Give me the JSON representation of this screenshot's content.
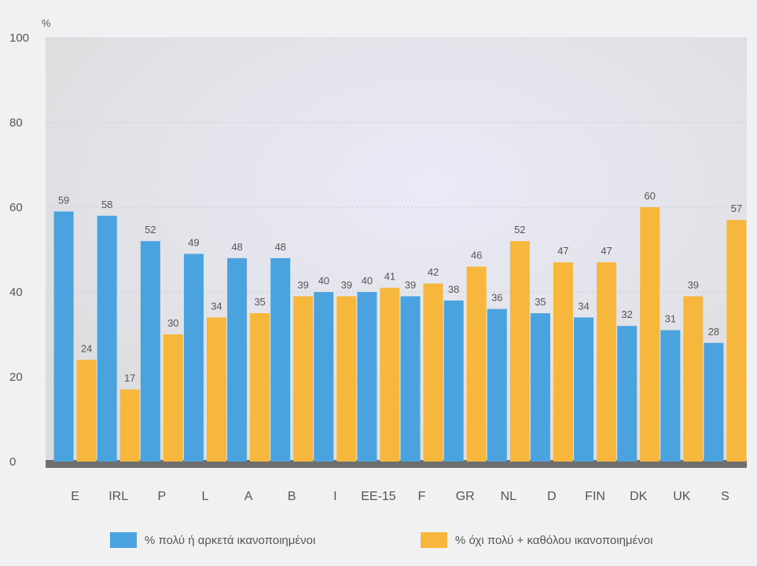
{
  "chart_data": {
    "type": "bar",
    "unit_label": "%",
    "categories": [
      "E",
      "IRL",
      "P",
      "L",
      "A",
      "B",
      "I",
      "EE-15",
      "F",
      "GR",
      "NL",
      "D",
      "FIN",
      "DK",
      "UK",
      "S"
    ],
    "series": [
      {
        "name": "% πολύ ή αρκετά ικανοποιημένοι",
        "color": "#4aa3df",
        "values": [
          59,
          58,
          52,
          49,
          48,
          48,
          40,
          40,
          39,
          38,
          36,
          35,
          34,
          32,
          31,
          28
        ]
      },
      {
        "name": "% όχι πολύ + καθόλου ικανοποιημένοι",
        "color": "#f6b73c",
        "values": [
          24,
          17,
          30,
          34,
          35,
          39,
          39,
          41,
          42,
          46,
          52,
          47,
          47,
          60,
          39,
          57
        ]
      }
    ],
    "ylim": [
      0,
      100
    ],
    "yticks": [
      0,
      20,
      40,
      60,
      80,
      100
    ],
    "grid": true,
    "legend_position": "bottom"
  }
}
